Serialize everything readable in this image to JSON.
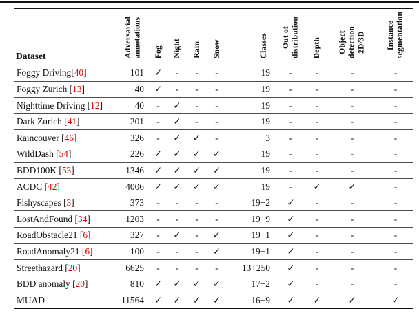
{
  "table": {
    "dataset_header": "Dataset",
    "check_glyph": "✓",
    "dash_glyph": "-",
    "cite_color": "#e10000",
    "columns": [
      {
        "id": "adversarial-annotations",
        "lines": [
          "Adversarial",
          "annotations"
        ]
      },
      {
        "id": "fog",
        "lines": [
          "Fog"
        ]
      },
      {
        "id": "night",
        "lines": [
          "Night"
        ]
      },
      {
        "id": "rain",
        "lines": [
          "Rain"
        ]
      },
      {
        "id": "snow",
        "lines": [
          "Snow"
        ]
      },
      {
        "id": "classes",
        "lines": [
          "Classes"
        ]
      },
      {
        "id": "out-of-distribution",
        "lines": [
          "Out of",
          "distribution"
        ]
      },
      {
        "id": "depth",
        "lines": [
          "Depth"
        ]
      },
      {
        "id": "object-detection-2d3d",
        "lines": [
          "Object",
          "detection",
          "2D/3D"
        ]
      },
      {
        "id": "instance-segmentation",
        "lines": [
          "Instance",
          "segmentation"
        ]
      }
    ],
    "rows": [
      {
        "name": "Foggy Driving",
        "ref": "40",
        "space_before_ref": false,
        "highlight": false,
        "values": [
          "101",
          "✓",
          "-",
          "-",
          "-",
          "19",
          "-",
          "-",
          "-",
          "-"
        ]
      },
      {
        "name": "Foggy Zurich",
        "ref": "13",
        "space_before_ref": true,
        "highlight": false,
        "values": [
          "40",
          "✓",
          "-",
          "-",
          "-",
          "19",
          "-",
          "-",
          "-",
          "-"
        ]
      },
      {
        "name": "Nighttime Driving",
        "ref": "12",
        "space_before_ref": true,
        "highlight": false,
        "values": [
          "40",
          "-",
          "✓",
          "-",
          "-",
          "19",
          "-",
          "-",
          "-",
          "-"
        ]
      },
      {
        "name": "Dark Zurich",
        "ref": "41",
        "space_before_ref": true,
        "highlight": false,
        "values": [
          "201",
          "-",
          "✓",
          "-",
          "-",
          "19",
          "-",
          "-",
          "-",
          "-"
        ]
      },
      {
        "name": "Raincouver",
        "ref": "46",
        "space_before_ref": true,
        "highlight": false,
        "values": [
          "326",
          "-",
          "✓",
          "✓",
          "-",
          "3",
          "-",
          "-",
          "-",
          "-"
        ]
      },
      {
        "name": "WildDash",
        "ref": "54",
        "space_before_ref": true,
        "highlight": false,
        "values": [
          "226",
          "✓",
          "✓",
          "✓",
          "✓",
          "19",
          "-",
          "-",
          "-",
          "-"
        ]
      },
      {
        "name": "BDD100K",
        "ref": "53",
        "space_before_ref": true,
        "highlight": false,
        "values": [
          "1346",
          "✓",
          "✓",
          "✓",
          "✓",
          "19",
          "-",
          "-",
          "-",
          "-"
        ]
      },
      {
        "name": "ACDC",
        "ref": "42",
        "space_before_ref": true,
        "highlight": false,
        "values": [
          "4006",
          "✓",
          "✓",
          "✓",
          "✓",
          "19",
          "-",
          "✓",
          "✓",
          "-"
        ]
      },
      {
        "name": "Fishyscapes",
        "ref": "3",
        "space_before_ref": true,
        "highlight": false,
        "values": [
          "373",
          "-",
          "-",
          "-",
          "-",
          "19+2",
          "✓",
          "-",
          "-",
          "-"
        ]
      },
      {
        "name": "LostAndFound",
        "ref": "34",
        "space_before_ref": true,
        "highlight": false,
        "values": [
          "1203",
          "-",
          "-",
          "-",
          "-",
          "19+9",
          "✓",
          "-",
          "-",
          "-"
        ]
      },
      {
        "name": "RoadObstacle21",
        "ref": "6",
        "space_before_ref": true,
        "highlight": false,
        "values": [
          "327",
          "-",
          "✓",
          "-",
          "✓",
          "19+1",
          "✓",
          "-",
          "-",
          "-"
        ]
      },
      {
        "name": "RoadAnomaly21",
        "ref": "6",
        "space_before_ref": true,
        "highlight": false,
        "values": [
          "100",
          "-",
          "-",
          "-",
          "✓",
          "19+1",
          "✓",
          "-",
          "-",
          "-"
        ]
      },
      {
        "name": "Streethazard",
        "ref": "20",
        "space_before_ref": true,
        "highlight": false,
        "values": [
          "6625",
          "-",
          "-",
          "-",
          "-",
          "13+250",
          "✓",
          "-",
          "-",
          "-"
        ]
      },
      {
        "name": "BDD anomaly",
        "ref": "20",
        "space_before_ref": true,
        "highlight": false,
        "values": [
          "810",
          "✓",
          "✓",
          "✓",
          "✓",
          "17+2",
          "✓",
          "-",
          "-",
          "-"
        ]
      },
      {
        "name": "MUAD",
        "ref": null,
        "space_before_ref": false,
        "highlight": true,
        "values": [
          "11564",
          "✓",
          "✓",
          "✓",
          "✓",
          "16+9",
          "✓",
          "✓",
          "✓",
          "✓"
        ]
      }
    ]
  }
}
